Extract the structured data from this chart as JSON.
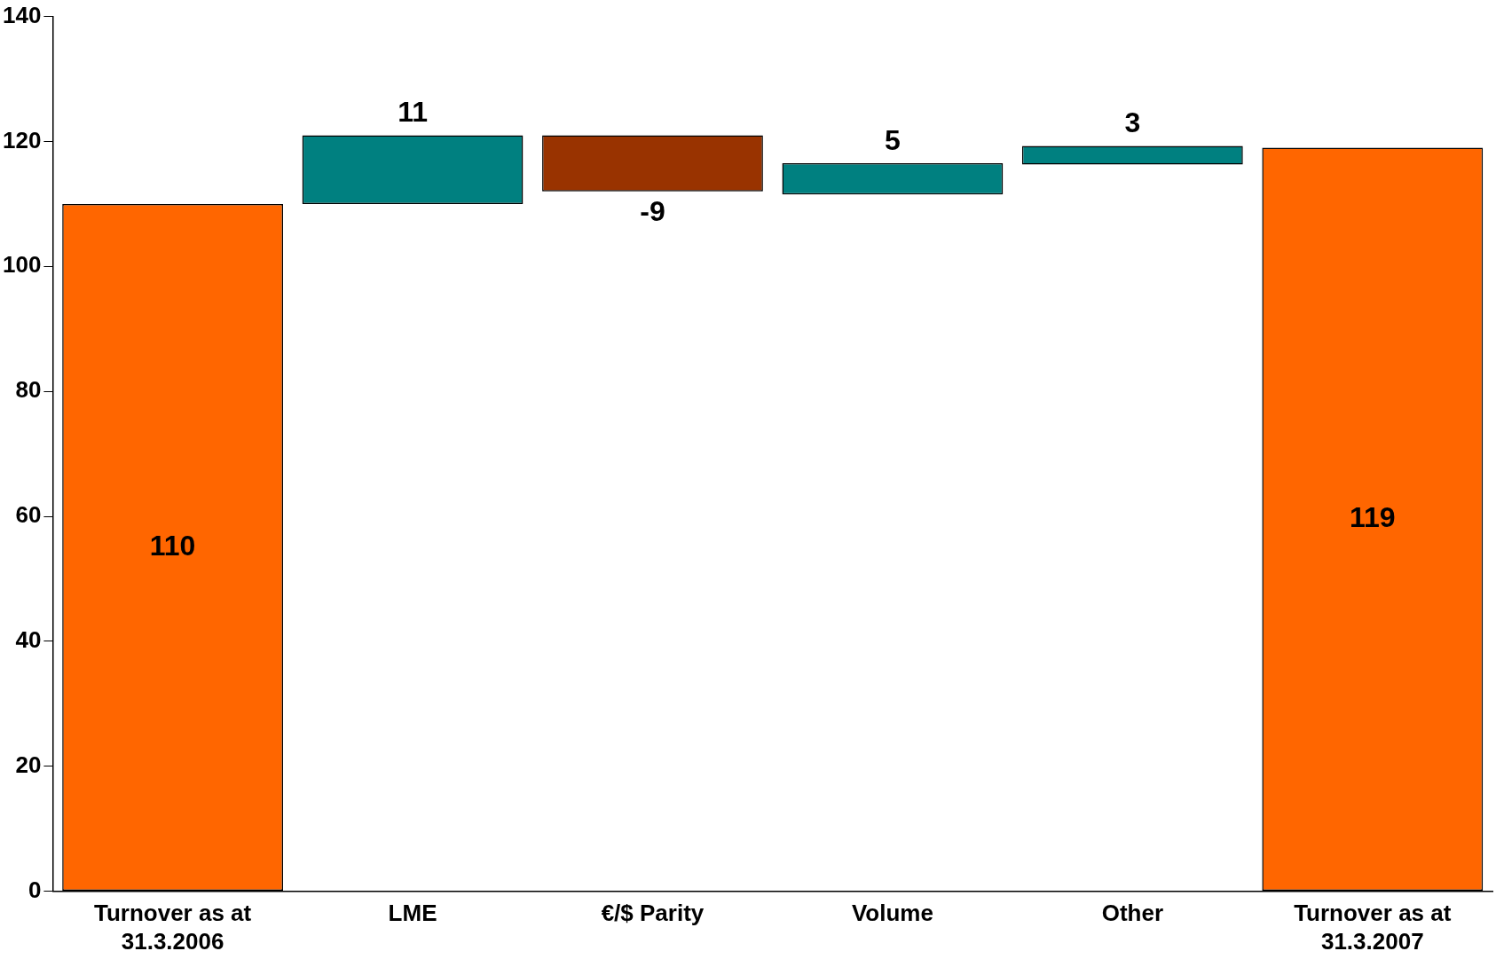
{
  "chart_data": {
    "type": "bar",
    "categories": [
      "Turnover as at 31.3.2006",
      "LME",
      "€/$ Parity",
      "Volume",
      "Other",
      "Turnover as at 31.3.2007"
    ],
    "values": [
      110,
      11,
      -9,
      5,
      3,
      119
    ],
    "base": [
      0,
      110,
      121,
      111.5,
      116.3,
      0
    ],
    "colors": [
      "#ff6600",
      "#008080",
      "#993300",
      "#008080",
      "#008080",
      "#ff6600"
    ],
    "ylim": [
      0,
      140
    ],
    "yticks": [
      0,
      20,
      40,
      60,
      80,
      100,
      120,
      140
    ],
    "data_labels": true,
    "grid": false,
    "legend": false
  }
}
